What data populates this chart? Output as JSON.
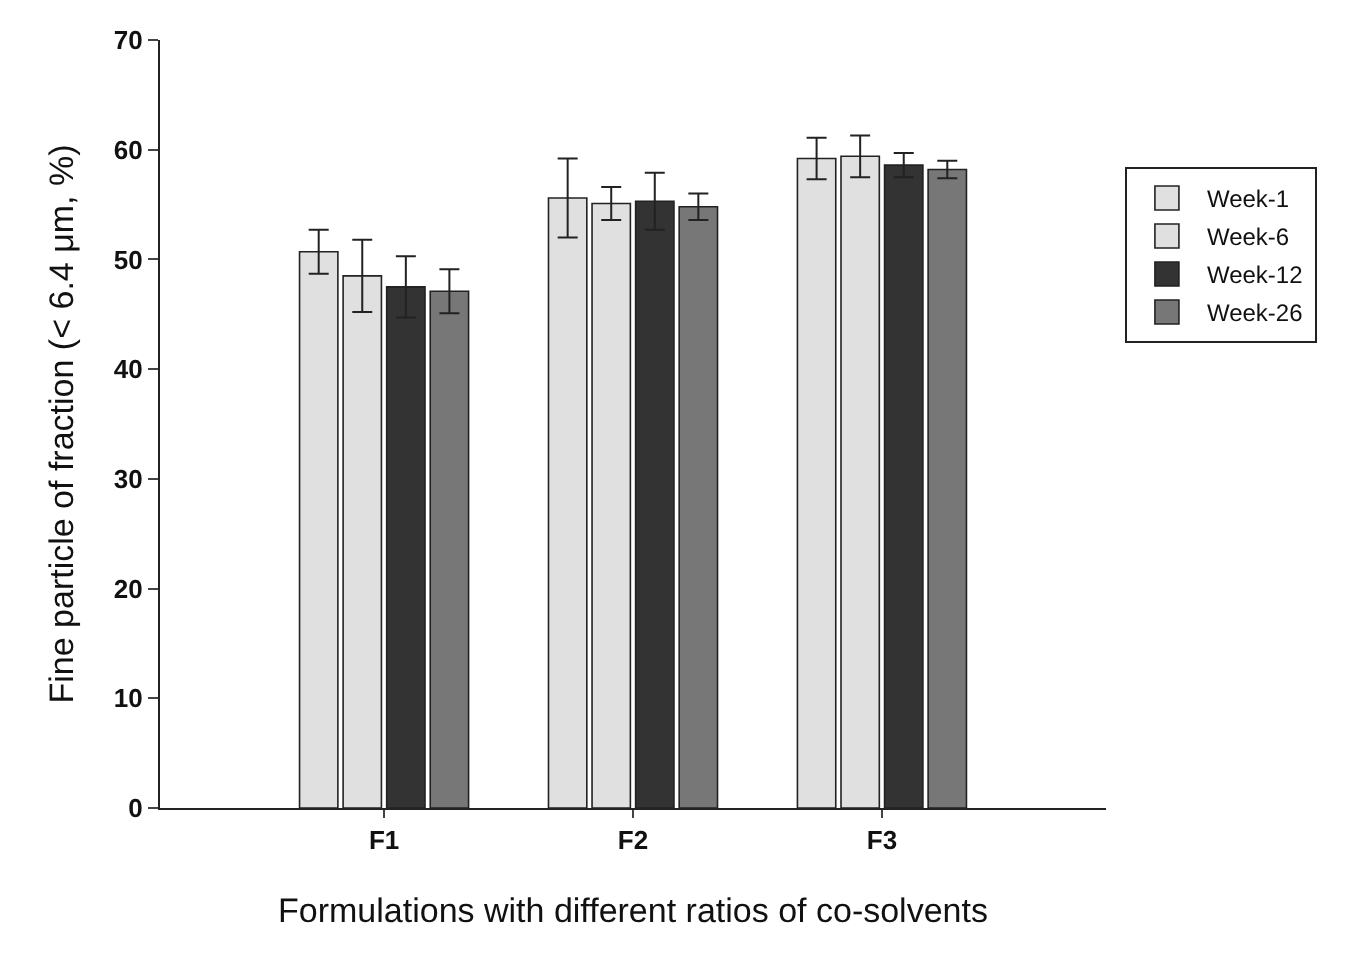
{
  "chart_data": {
    "type": "bar",
    "xlabel": "Formulations with different ratios of co-solvents",
    "ylabel": "Fine particle of fraction (< 6.4 μm, %)",
    "categories": [
      "F1",
      "F2",
      "F3"
    ],
    "series": [
      {
        "name": "Week-1",
        "color": "#e0e0e0",
        "values": [
          50.7,
          55.6,
          59.2
        ],
        "errors": [
          2.0,
          3.6,
          1.9
        ]
      },
      {
        "name": "Week-6",
        "color": "#e0e0e0",
        "values": [
          48.5,
          55.1,
          59.4
        ],
        "errors": [
          3.3,
          1.5,
          1.9
        ]
      },
      {
        "name": "Week-12",
        "color": "#333333",
        "values": [
          47.5,
          55.3,
          58.6
        ],
        "errors": [
          2.8,
          2.6,
          1.1
        ]
      },
      {
        "name": "Week-26",
        "color": "#777777",
        "values": [
          47.1,
          54.8,
          58.2
        ],
        "errors": [
          2.0,
          1.2,
          0.8
        ]
      }
    ],
    "ylim": [
      0,
      70
    ],
    "yticks": [
      0,
      10,
      20,
      30,
      40,
      50,
      60,
      70
    ],
    "legend": "right"
  }
}
